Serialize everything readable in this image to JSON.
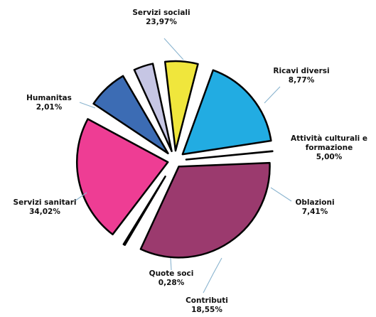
{
  "chart_data": {
    "type": "pie",
    "exploded": true,
    "start_angle_deg": 84,
    "direction": "clockwise",
    "slices": [
      {
        "label_lines": [
          "Quote soci"
        ],
        "pct_text": "0,28%",
        "value": 0.28,
        "color": "#ffffff"
      },
      {
        "label_lines": [
          "Servizi sanitari"
        ],
        "pct_text": "34,02%",
        "value": 34.02,
        "color": "#9b3a6e"
      },
      {
        "label_lines": [
          "Humanitas"
        ],
        "pct_text": "2,01%",
        "value": 2.01,
        "color": "#2cb54a"
      },
      {
        "label_lines": [
          "Servizi sociali"
        ],
        "pct_text": "23,97%",
        "value": 23.97,
        "color": "#ee3d94"
      },
      {
        "label_lines": [
          "Ricavi diversi"
        ],
        "pct_text": "8,77%",
        "value": 8.77,
        "color": "#3c6cb4"
      },
      {
        "label_lines": [
          "Attività culturali e",
          "formazione"
        ],
        "pct_text": "5,00%",
        "value": 5.0,
        "color": "#c6c6e4"
      },
      {
        "label_lines": [
          "Oblazioni"
        ],
        "pct_text": "7,41%",
        "value": 7.41,
        "color": "#f0e63c"
      },
      {
        "label_lines": [
          "Contributi"
        ],
        "pct_text": "18,55%",
        "value": 18.55,
        "color": "#22ace2"
      }
    ]
  }
}
